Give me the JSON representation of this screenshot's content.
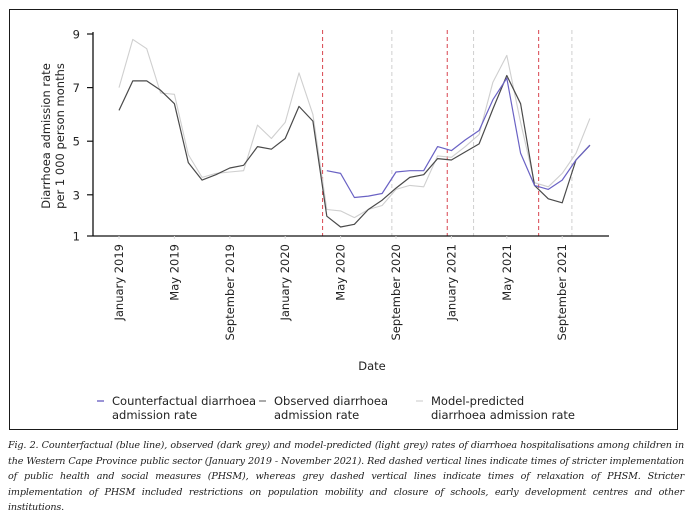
{
  "figure": {
    "caption": "Fig. 2. Counterfactual (blue line), observed (dark grey) and model-predicted (light grey) rates of diarrhoea hospitalisations among children in the Western Cape Province public sector (January 2019 - November 2021). Red dashed vertical lines indicate times of stricter implementation of public health and social measures (PHSM), whereas grey dashed vertical lines indicate times of relaxation of PHSM. Stricter implementation of PHSM included restrictions on population mobility and closure of schools, early development centres and other institutions."
  },
  "legend": [
    {
      "label_line1": "Counterfactual diarrhoea",
      "label_line2": "admission rate",
      "color": "#7b74c9"
    },
    {
      "label_line1": "Observed diarrhoea",
      "label_line2": "admission rate",
      "color": "#8a8a8a"
    },
    {
      "label_line1": "Model-predicted",
      "label_line2": "diarrhoea admission rate",
      "color": "#d8d8d8"
    }
  ],
  "chart_data": {
    "type": "line",
    "title": "",
    "xlabel": "Date",
    "ylabel_line1": "Diarrhoea admission rate",
    "ylabel_line2": "per 1 000 person months",
    "ylim": [
      1,
      9
    ],
    "yticks": [
      9,
      7,
      5,
      3,
      1
    ],
    "grid": false,
    "legend_position": "bottom",
    "x": [
      "2019-01",
      "2019-02",
      "2019-03",
      "2019-04",
      "2019-05",
      "2019-06",
      "2019-07",
      "2019-08",
      "2019-09",
      "2019-10",
      "2019-11",
      "2019-12",
      "2020-01",
      "2020-02",
      "2020-03",
      "2020-04",
      "2020-05",
      "2020-06",
      "2020-07",
      "2020-08",
      "2020-09",
      "2020-10",
      "2020-11",
      "2020-12",
      "2021-01",
      "2021-02",
      "2021-03",
      "2021-04",
      "2021-05",
      "2021-06",
      "2021-07",
      "2021-08",
      "2021-09",
      "2021-10",
      "2021-11"
    ],
    "xtick_labels": [
      {
        "index": 0,
        "label": "January 2019"
      },
      {
        "index": 4,
        "label": "May 2019"
      },
      {
        "index": 8,
        "label": "September 2019"
      },
      {
        "index": 12,
        "label": "January 2020"
      },
      {
        "index": 16,
        "label": "May 2020"
      },
      {
        "index": 20,
        "label": "September 2020"
      },
      {
        "index": 24,
        "label": "January 2021"
      },
      {
        "index": 28,
        "label": "May 2021"
      },
      {
        "index": 32,
        "label": "September 2021"
      }
    ],
    "series": [
      {
        "name": "Model-predicted diarrhoea admission rate",
        "color": "#cfcfcf",
        "start_index": 0,
        "values": [
          7.0,
          8.8,
          8.45,
          6.8,
          6.75,
          4.5,
          3.65,
          3.8,
          3.85,
          3.9,
          5.6,
          5.1,
          5.7,
          7.55,
          6.0,
          2.45,
          2.4,
          2.15,
          2.45,
          2.6,
          3.2,
          3.35,
          3.3,
          4.45,
          4.4,
          4.8,
          5.25,
          7.2,
          8.2,
          5.7,
          3.45,
          3.3,
          3.8,
          4.55,
          5.85
        ]
      },
      {
        "name": "Observed diarrhoea admission rate",
        "color": "#4a4a4a",
        "start_index": 0,
        "values": [
          6.15,
          7.25,
          7.25,
          6.9,
          6.4,
          4.2,
          3.55,
          3.75,
          4.0,
          4.1,
          4.8,
          4.7,
          5.1,
          6.3,
          5.75,
          2.2,
          1.8,
          1.9,
          2.45,
          2.8,
          3.25,
          3.65,
          3.75,
          4.35,
          4.3,
          4.6,
          4.9,
          6.2,
          7.45,
          6.4,
          3.35,
          2.85,
          2.7,
          4.3,
          4.85
        ]
      },
      {
        "name": "Counterfactual diarrhoea admission rate",
        "color": "#6a62c4",
        "start_index": 15,
        "values": [
          3.9,
          3.8,
          2.9,
          2.95,
          3.05,
          3.85,
          3.9,
          3.9,
          4.8,
          4.65,
          5.05,
          5.4,
          6.55,
          7.35,
          4.55,
          3.35,
          3.2,
          3.55,
          4.3,
          4.85
        ]
      }
    ],
    "vertical_lines": [
      {
        "type": "stricter PHSM",
        "color": "#d9454f",
        "position_months": 14.7
      },
      {
        "type": "relaxation of PHSM",
        "color": "#cfcfcf",
        "position_months": 19.7
      },
      {
        "type": "stricter PHSM",
        "color": "#d9454f",
        "position_months": 23.7
      },
      {
        "type": "relaxation of PHSM",
        "color": "#cfcfcf",
        "position_months": 25.6
      },
      {
        "type": "stricter PHSM",
        "color": "#d9454f",
        "position_months": 30.3
      },
      {
        "type": "relaxation of PHSM",
        "color": "#cfcfcf",
        "position_months": 32.7
      }
    ]
  }
}
